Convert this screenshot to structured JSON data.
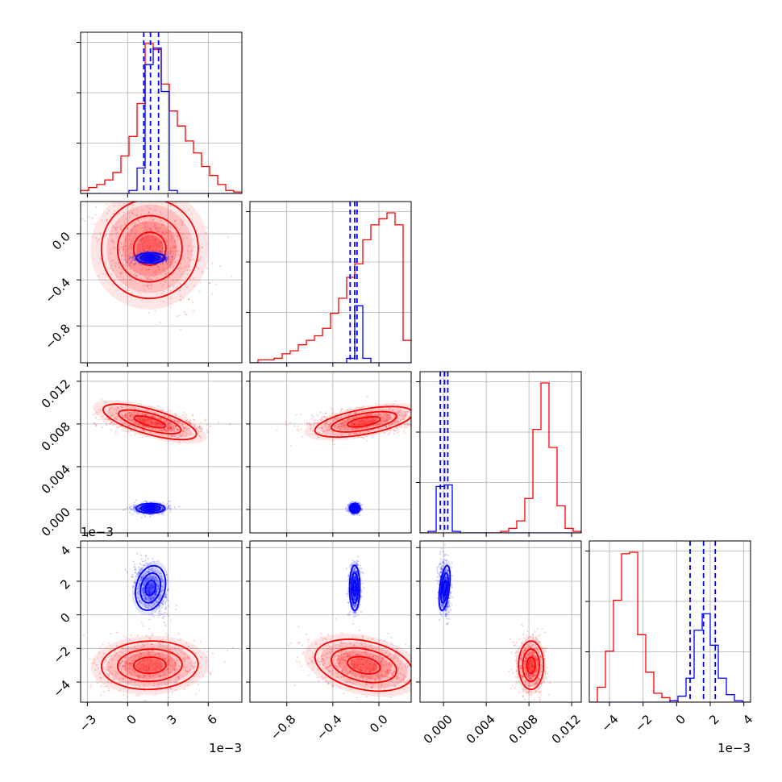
{
  "chart_data": {
    "type": "corner",
    "grid": true,
    "colors": {
      "red_series": "#ff0000",
      "blue_series": "#0000ff"
    },
    "parameters": [
      {
        "range": [
          -0.0035,
          0.0085
        ],
        "ticks": [
          -0.003,
          0.0,
          0.003,
          0.006
        ],
        "tick_labels": [
          "−3",
          "0",
          "3",
          "6"
        ],
        "offset_label": "1e−3"
      },
      {
        "range": [
          -1.12,
          0.28
        ],
        "ticks": [
          -0.8,
          -0.4,
          0.0
        ],
        "tick_labels": [
          "−0.8",
          "−0.4",
          "0.0"
        ],
        "offset_label": ""
      },
      {
        "range": [
          -0.0022,
          0.0129
        ],
        "ticks": [
          0.0,
          0.004,
          0.008,
          0.012
        ],
        "tick_labels": [
          "0.000",
          "0.004",
          "0.008",
          "0.012"
        ],
        "offset_label": ""
      },
      {
        "range": [
          -0.0052,
          0.0044
        ],
        "ticks": [
          -0.004,
          -0.002,
          0.0,
          0.002,
          0.004
        ],
        "tick_labels": [
          "−4",
          "−2",
          "0",
          "2",
          "4"
        ],
        "offset_label": "1e−3"
      }
    ],
    "series": [
      {
        "name": "",
        "color": "#ff0000",
        "means": [
          0.00165,
          -0.13,
          0.0082,
          -0.003
        ],
        "sigmas": [
          0.002,
          0.24,
          0.00065,
          0.0008
        ],
        "correlations": [
          [
            0,
            1,
            -0.35
          ],
          [
            0,
            2,
            -0.45
          ],
          [
            0,
            3,
            0.05
          ],
          [
            1,
            2,
            0.3
          ],
          [
            1,
            3,
            -0.35
          ],
          [
            2,
            3,
            0.0
          ]
        ],
        "quantile_lines": [],
        "hist_1d": [
          {
            "bin_edges": [
              -0.0035,
              -0.0029,
              -0.0023,
              -0.0017,
              -0.0011,
              -0.0005,
              0.0001,
              0.0007,
              0.0013,
              0.0019,
              0.0025,
              0.0031,
              0.0037,
              0.0043,
              0.0049,
              0.0055,
              0.0061,
              0.0067,
              0.0073,
              0.0079,
              0.0085
            ],
            "counts": [
              2,
              4,
              6,
              9,
              14,
              25,
              38,
              60,
              100,
              96,
              73,
              55,
              45,
              35,
              27,
              18,
              12,
              6,
              2,
              1
            ]
          },
          {
            "bin_edges": [
              -1.12,
              -1.05,
              -0.98,
              -0.91,
              -0.84,
              -0.77,
              -0.7,
              -0.63,
              -0.56,
              -0.49,
              -0.42,
              -0.35,
              -0.28,
              -0.21,
              -0.14,
              -0.07,
              0.0,
              0.07,
              0.14,
              0.21,
              0.28
            ],
            "counts": [
              0,
              2,
              2,
              3,
              6,
              8,
              12,
              15,
              18,
              23,
              33,
              43,
              57,
              66,
              82,
              92,
              96,
              100,
              92,
              15
            ]
          },
          {
            "bin_edges": [
              -0.0022,
              -0.001445,
              -0.00069,
              6.5e-05,
              0.00082,
              0.001575,
              0.00233,
              0.003085,
              0.00384,
              0.004595,
              0.00535,
              0.006105,
              0.00686,
              0.007615,
              0.00837,
              0.009125,
              0.00988,
              0.010635,
              0.01139,
              0.012145,
              0.0129
            ],
            "counts": [
              0,
              0,
              0,
              0,
              0,
              0,
              0,
              0,
              0,
              0,
              1,
              3,
              8,
              23,
              69,
              100,
              57,
              18,
              3,
              1
            ]
          },
          {
            "bin_edges": [
              -0.0052,
              -0.00472,
              -0.00424,
              -0.00376,
              -0.00328,
              -0.0028,
              -0.00232,
              -0.00184,
              -0.00136,
              -0.00088,
              -0.0004,
              8e-05,
              0.00056,
              0.00104,
              0.00152,
              0.002,
              0.00248,
              0.00296,
              0.00344,
              0.00392,
              0.0044
            ],
            "counts": [
              0,
              10,
              34,
              68,
              99,
              100,
              45,
              20,
              6,
              3,
              1,
              0,
              0,
              0,
              0,
              0,
              0,
              0,
              0,
              0
            ]
          }
        ]
      },
      {
        "name": "",
        "color": "#0000ff",
        "means": [
          0.0017,
          -0.21,
          0.0001,
          0.0016
        ],
        "sigmas": [
          0.0006,
          0.025,
          0.00025,
          0.00075
        ],
        "correlations": [
          [
            0,
            1,
            0.0
          ],
          [
            0,
            2,
            0.0
          ],
          [
            0,
            3,
            -0.4
          ],
          [
            1,
            2,
            0.0
          ],
          [
            1,
            3,
            0.0
          ],
          [
            2,
            3,
            -0.2
          ]
        ],
        "quantile_lines": [
          [
            0.0012,
            0.0017,
            0.0023
          ],
          [
            -0.25,
            -0.21,
            -0.19
          ],
          [
            -0.0003,
            0.0001,
            0.0004
          ],
          [
            0.0008,
            0.0016,
            0.0023
          ]
        ],
        "hist_1d": [
          {
            "bin_edges": [
              -0.0035,
              -0.0029,
              -0.0023,
              -0.0017,
              -0.0011,
              -0.0005,
              0.0001,
              0.0007,
              0.0013,
              0.0019,
              0.0025,
              0.0031,
              0.0037,
              0.0043,
              0.0049,
              0.0055,
              0.0061,
              0.0067,
              0.0073,
              0.0079,
              0.0085
            ],
            "counts": [
              0,
              0,
              0,
              0,
              0,
              0,
              2,
              17,
              86,
              97,
              68,
              2,
              0,
              0,
              0,
              0,
              0,
              0,
              0,
              0
            ]
          },
          {
            "bin_edges": [
              -1.12,
              -1.05,
              -0.98,
              -0.91,
              -0.84,
              -0.77,
              -0.7,
              -0.63,
              -0.56,
              -0.49,
              -0.42,
              -0.35,
              -0.28,
              -0.21,
              -0.14,
              -0.07,
              0.0,
              0.07,
              0.14,
              0.21,
              0.28
            ],
            "counts": [
              0,
              0,
              0,
              0,
              0,
              0,
              0,
              0,
              0,
              0,
              0,
              0,
              3,
              38,
              3,
              0,
              0,
              0,
              0,
              0
            ]
          },
          {
            "bin_edges": [
              -0.0022,
              -0.001445,
              -0.00069,
              6.5e-05,
              0.00082,
              0.001575,
              0.00233,
              0.003085,
              0.00384,
              0.004595,
              0.00535,
              0.006105,
              0.00686,
              0.007615,
              0.00837,
              0.009125,
              0.00988,
              0.010635,
              0.01139,
              0.012145,
              0.0129
            ],
            "counts": [
              0,
              1,
              31,
              32,
              1,
              0,
              0,
              0,
              0,
              0,
              0,
              0,
              0,
              0,
              0,
              0,
              0,
              0,
              0,
              0
            ]
          },
          {
            "bin_edges": [
              -0.0052,
              -0.00472,
              -0.00424,
              -0.00376,
              -0.00328,
              -0.0028,
              -0.00232,
              -0.00184,
              -0.00136,
              -0.00088,
              -0.0004,
              8e-05,
              0.00056,
              0.00104,
              0.00152,
              0.002,
              0.00248,
              0.00296,
              0.00344,
              0.00392,
              0.0044
            ],
            "counts": [
              0,
              0,
              0,
              0,
              0,
              0,
              0,
              0,
              0,
              0,
              1,
              4,
              16,
              48,
              59,
              38,
              16,
              5,
              1,
              0
            ]
          }
        ]
      }
    ]
  }
}
